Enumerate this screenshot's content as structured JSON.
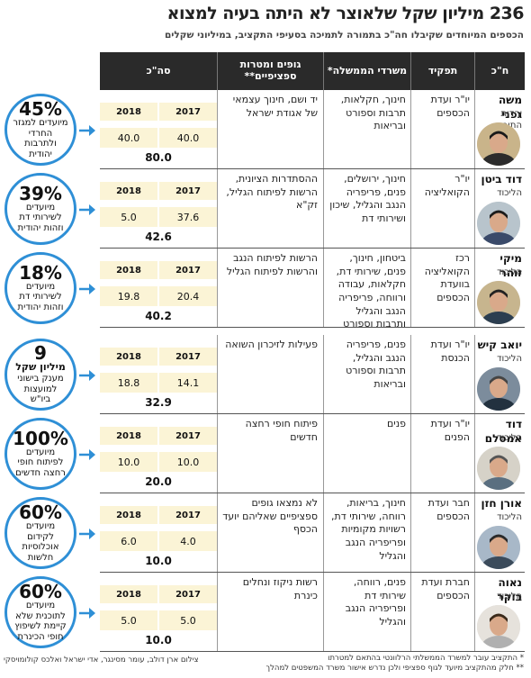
{
  "title": "236 מיליון שקל שלאוצר לא היתה בעיה למצוא",
  "subtitle": "הכספים המיוחדים שקיבלו חה\"כ בתמורה לתמיכה בסעיפי התקציב, במיליוני שקלים",
  "columns": {
    "mk": "ח\"כ",
    "role": "תפקיד",
    "ministries": "משרדי הממשלה*",
    "bodies": "גופים ומטרות ספציפיים**",
    "total": "סה\"כ"
  },
  "year_labels": {
    "y1": "2017",
    "y2": "2018"
  },
  "rows": [
    {
      "name": "משה גפני",
      "party": "יהדות התורה",
      "role": "יו\"ר ועדת הכספים",
      "ministries": "חינוך, חקלאות, תרבות וספורט ובריאות",
      "bodies": "יד ושם, חינוך עצמאי של אגודת ישראל",
      "v2017": "40.0",
      "v2018": "40.0",
      "total": "80.0",
      "bubble": {
        "big": "45%",
        "text": "מיועדים למגזר החרדי ולתרבות יהודית"
      }
    },
    {
      "name": "דוד ביטן",
      "party": "הליכוד",
      "role": "יו\"ר הקואליציה",
      "ministries": "חינוך, ירושלים, פנים, פריפריה הנגב והגליל, שיכון ושירותי דת",
      "bodies": "ההסתדרות הציונית, הרשות לפיתוח הגליל, זק\"א",
      "v2017": "37.6",
      "v2018": "5.0",
      "total": "42.6",
      "bubble": {
        "big": "39%",
        "text": "מיועדים לשירותי דת וזהות יהודית"
      }
    },
    {
      "name": "מיקי זוהר",
      "party": "הליכוד",
      "role": "רכז הקואליציה בוועדת הכספים",
      "ministries": "ביטחון, חינוך, פנים, שירותי דת, חקלאות, עבודה ורווחה, פריפריה הנגב והגליל ותרבות וספורט",
      "bodies": "הרשות לפיתוח הנגב והרשות לפיתוח הגליל",
      "v2017": "20.4",
      "v2018": "19.8",
      "total": "40.2",
      "bubble": {
        "big": "18%",
        "text": "מיועדים לשירותי דת וזהות יהודית"
      }
    },
    {
      "name": "יואב קיש",
      "party": "הליכוד",
      "role": "יו\"ר ועדת הכנסת",
      "ministries": "פנים, פריפריה הנגב והגליל, תרבות וספורט ובריאות",
      "bodies": "פעילות לזיכרון השואה",
      "v2017": "14.1",
      "v2018": "18.8",
      "total": "32.9",
      "bubble": {
        "big": "9",
        "bigline": "מיליון שקל",
        "text": "מענק בישוני למועצות ביו\"ש"
      }
    },
    {
      "name": "דוד אמסלם",
      "party": "הליכוד",
      "role": "יו\"ר ועדת הפנים",
      "ministries": "פנים",
      "bodies": "פיתוח חופי רחצה חדשים",
      "v2017": "10.0",
      "v2018": "10.0",
      "total": "20.0",
      "bubble": {
        "big": "100%",
        "text": "מיועדים לפיתוח חופי רחצה חדשים"
      }
    },
    {
      "name": "אורן חזן",
      "party": "הליכוד",
      "role": "חבר ועדת הכספים",
      "ministries": "חינוך, בריאות, רווחה, שירותי דת, רשויות מקומיות ופריפריה הנגב והגליל",
      "bodies": "לא נמצאו גופים ספציפיים שאליהם יועד הכסף",
      "v2017": "4.0",
      "v2018": "6.0",
      "total": "10.0",
      "bubble": {
        "big": "60%",
        "text": "מיועדים לקידום אוכלוסיות חלשות"
      }
    },
    {
      "name": "נאוה בוקר",
      "party": "הליכוד",
      "role": "חברת ועדת הכספים",
      "ministries": "פנים, רווחה, שירותי דת ופריפריה הנגב והגליל",
      "bodies": "רשות ניקוז ונחלים כינרת",
      "v2017": "5.0",
      "v2018": "5.0",
      "total": "10.0",
      "bubble": {
        "big": "60%",
        "text": "מיועדים לתוכנית שלא קיימת לשיפוץ חופי הכינרת"
      }
    }
  ],
  "footnotes": {
    "f1": "* התקציב עובר למשרד הממשלתי הרלוונטי בהתאם למטרתו",
    "f2": "** חלק מהתקציב מיועד לגוף ספציפי ולכן נדרש אישור משרד המשפטים למהלך"
  },
  "credit": "צילום ארן דולב, עומר מסינגר, אדי ישראל ואלכס קולומויסקי",
  "colors": {
    "header_bg": "#2a2a2a",
    "bubble_border": "#2e8fd6",
    "year_bg": "#fbf4d6"
  }
}
